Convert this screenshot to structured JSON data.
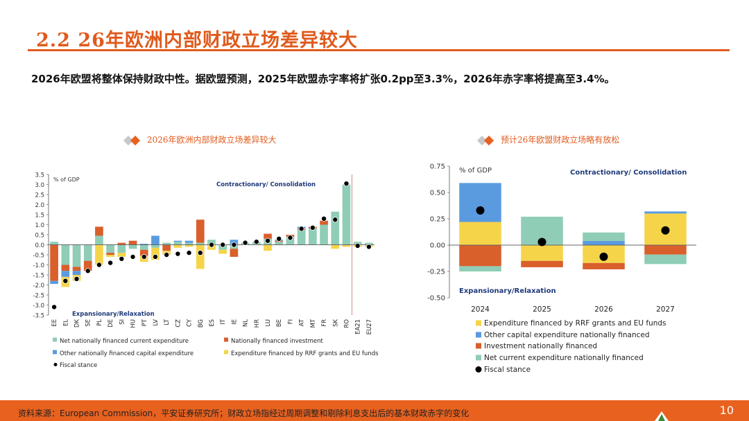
{
  "slide": {
    "title": "2.2 26年欧洲内部财政立场差异较大",
    "subtitle": "2026年欧盟将整体保持财政中性。据欧盟预测，2025年欧盟赤字率将扩张0.2pp至3.3%，2026年赤字率将提高至3.4%。",
    "footer_source_label": "资料来源：",
    "footer_source": "European Commission",
    "footer_note": "，平安证券研究所；财政立场指经过周期调整和剔除利息支出后的基本财政赤字的变化",
    "page_number": "10"
  },
  "chart_data": [
    {
      "type": "bar",
      "stacked": true,
      "panel_title": "2026年欧洲内部财政立场差异较大",
      "ylabel": "% of GDP",
      "ylim": [
        -3.5,
        3.5
      ],
      "yticks": [
        "3.5",
        "3.0",
        "2.5",
        "2.0",
        "1.5",
        "1.0",
        "0.5",
        "0.0",
        "-0.5",
        "-1.0",
        "-1.5",
        "-2.0",
        "-2.5",
        "-3.0",
        "-3.5"
      ],
      "annotation_top": "Contractionary/ Consolidation",
      "annotation_bottom": "Expansionary/Relaxation",
      "categories": [
        "EE",
        "EL",
        "DK",
        "SE",
        "PL",
        "DE",
        "SI",
        "HU",
        "PT",
        "LV",
        "LT",
        "CZ",
        "CY",
        "BG",
        "ES",
        "IT",
        "IE",
        "NL",
        "HR",
        "LU",
        "BE",
        "FI",
        "AT",
        "MT",
        "FR",
        "SK",
        "RO",
        "EA21",
        "EU27"
      ],
      "series": [
        {
          "name": "Net nationally financed current expenditure",
          "color": "#8fcdb6",
          "values": [
            0.15,
            -1.0,
            -1.1,
            -0.8,
            0.45,
            -0.4,
            -0.4,
            -0.2,
            -0.25,
            -0.15,
            0.1,
            0.15,
            0.1,
            0.1,
            0.25,
            -0.25,
            -0.2,
            0.1,
            0.15,
            0.3,
            0.15,
            0.4,
            0.75,
            0.8,
            1.0,
            1.65,
            3.0,
            0.15,
            0.1
          ]
        },
        {
          "name": "Nationally financed investment",
          "color": "#d95f2b",
          "values": [
            -1.8,
            -0.3,
            -0.2,
            -0.5,
            0.45,
            -0.1,
            0.1,
            0.2,
            -0.3,
            0.0,
            -0.3,
            0.0,
            0.0,
            1.15,
            0.0,
            0.0,
            -0.4,
            0.0,
            0.0,
            0.25,
            0.05,
            0.1,
            0.05,
            0.1,
            0.2,
            0.0,
            0.0,
            0.0,
            0.0
          ]
        },
        {
          "name": "Other nationally financed capital expenditure",
          "color": "#5a9be0",
          "values": [
            -0.15,
            -0.3,
            -0.2,
            0.0,
            0.0,
            0.0,
            0.0,
            0.0,
            0.05,
            0.45,
            0.0,
            0.05,
            0.1,
            0.0,
            0.0,
            0.0,
            0.25,
            0.0,
            0.0,
            0.0,
            0.05,
            0.0,
            0.1,
            0.0,
            0.0,
            0.0,
            0.0,
            0.0,
            0.0
          ]
        },
        {
          "name": "Expenditure financed by RRF grants and EU funds",
          "color": "#f5d44a",
          "values": [
            0.0,
            -0.5,
            -0.3,
            0.0,
            -1.0,
            -0.1,
            -0.2,
            0.0,
            -0.3,
            -0.6,
            -0.2,
            -0.15,
            -0.1,
            -1.2,
            -0.25,
            -0.2,
            0.0,
            0.0,
            0.0,
            -0.3,
            0.0,
            0.0,
            0.0,
            0.0,
            0.0,
            -0.2,
            -0.1,
            -0.1,
            -0.1
          ]
        }
      ],
      "fiscal_stance": {
        "name": "Fiscal stance",
        "color": "#000000",
        "values": [
          -3.1,
          -1.8,
          -1.7,
          -1.3,
          -1.0,
          -0.9,
          -0.7,
          -0.6,
          -0.6,
          -0.6,
          -0.5,
          -0.45,
          -0.4,
          -0.4,
          0.0,
          0.0,
          0.0,
          0.1,
          0.15,
          0.2,
          0.3,
          0.35,
          0.8,
          0.85,
          1.3,
          1.25,
          3.05,
          -0.05,
          -0.1
        ]
      }
    },
    {
      "type": "bar",
      "stacked": true,
      "panel_title": "预计26年欧盟财政立场略有放松",
      "ylabel": "% of GDP",
      "ylim": [
        -0.5,
        0.75
      ],
      "yticks": [
        "0.75",
        "0.50",
        "0.25",
        "0.00",
        "-0.25",
        "-0.50"
      ],
      "annotation_top": "Contractionary/ Consolidation",
      "annotation_bottom": "Expansionary/Relaxation",
      "categories": [
        "2024",
        "2025",
        "2026",
        "2027"
      ],
      "series": [
        {
          "name": "Expenditure financed by RRF grants and EU funds",
          "color": "#f5d44a",
          "values": [
            0.22,
            -0.15,
            -0.17,
            0.3
          ]
        },
        {
          "name": "Other capital expenditure nationally financed",
          "color": "#5a9be0",
          "values": [
            0.37,
            0.0,
            0.04,
            0.02
          ]
        },
        {
          "name": "Investment nationally financed",
          "color": "#d95f2b",
          "values": [
            -0.2,
            -0.06,
            -0.06,
            -0.09
          ]
        },
        {
          "name": "Net current expenditure nationally financed",
          "color": "#8fcdb6",
          "values": [
            -0.05,
            0.27,
            0.08,
            -0.09
          ]
        }
      ],
      "fiscal_stance": {
        "name": "Fiscal stance",
        "color": "#000000",
        "values": [
          0.33,
          0.03,
          -0.11,
          0.14
        ]
      }
    }
  ]
}
